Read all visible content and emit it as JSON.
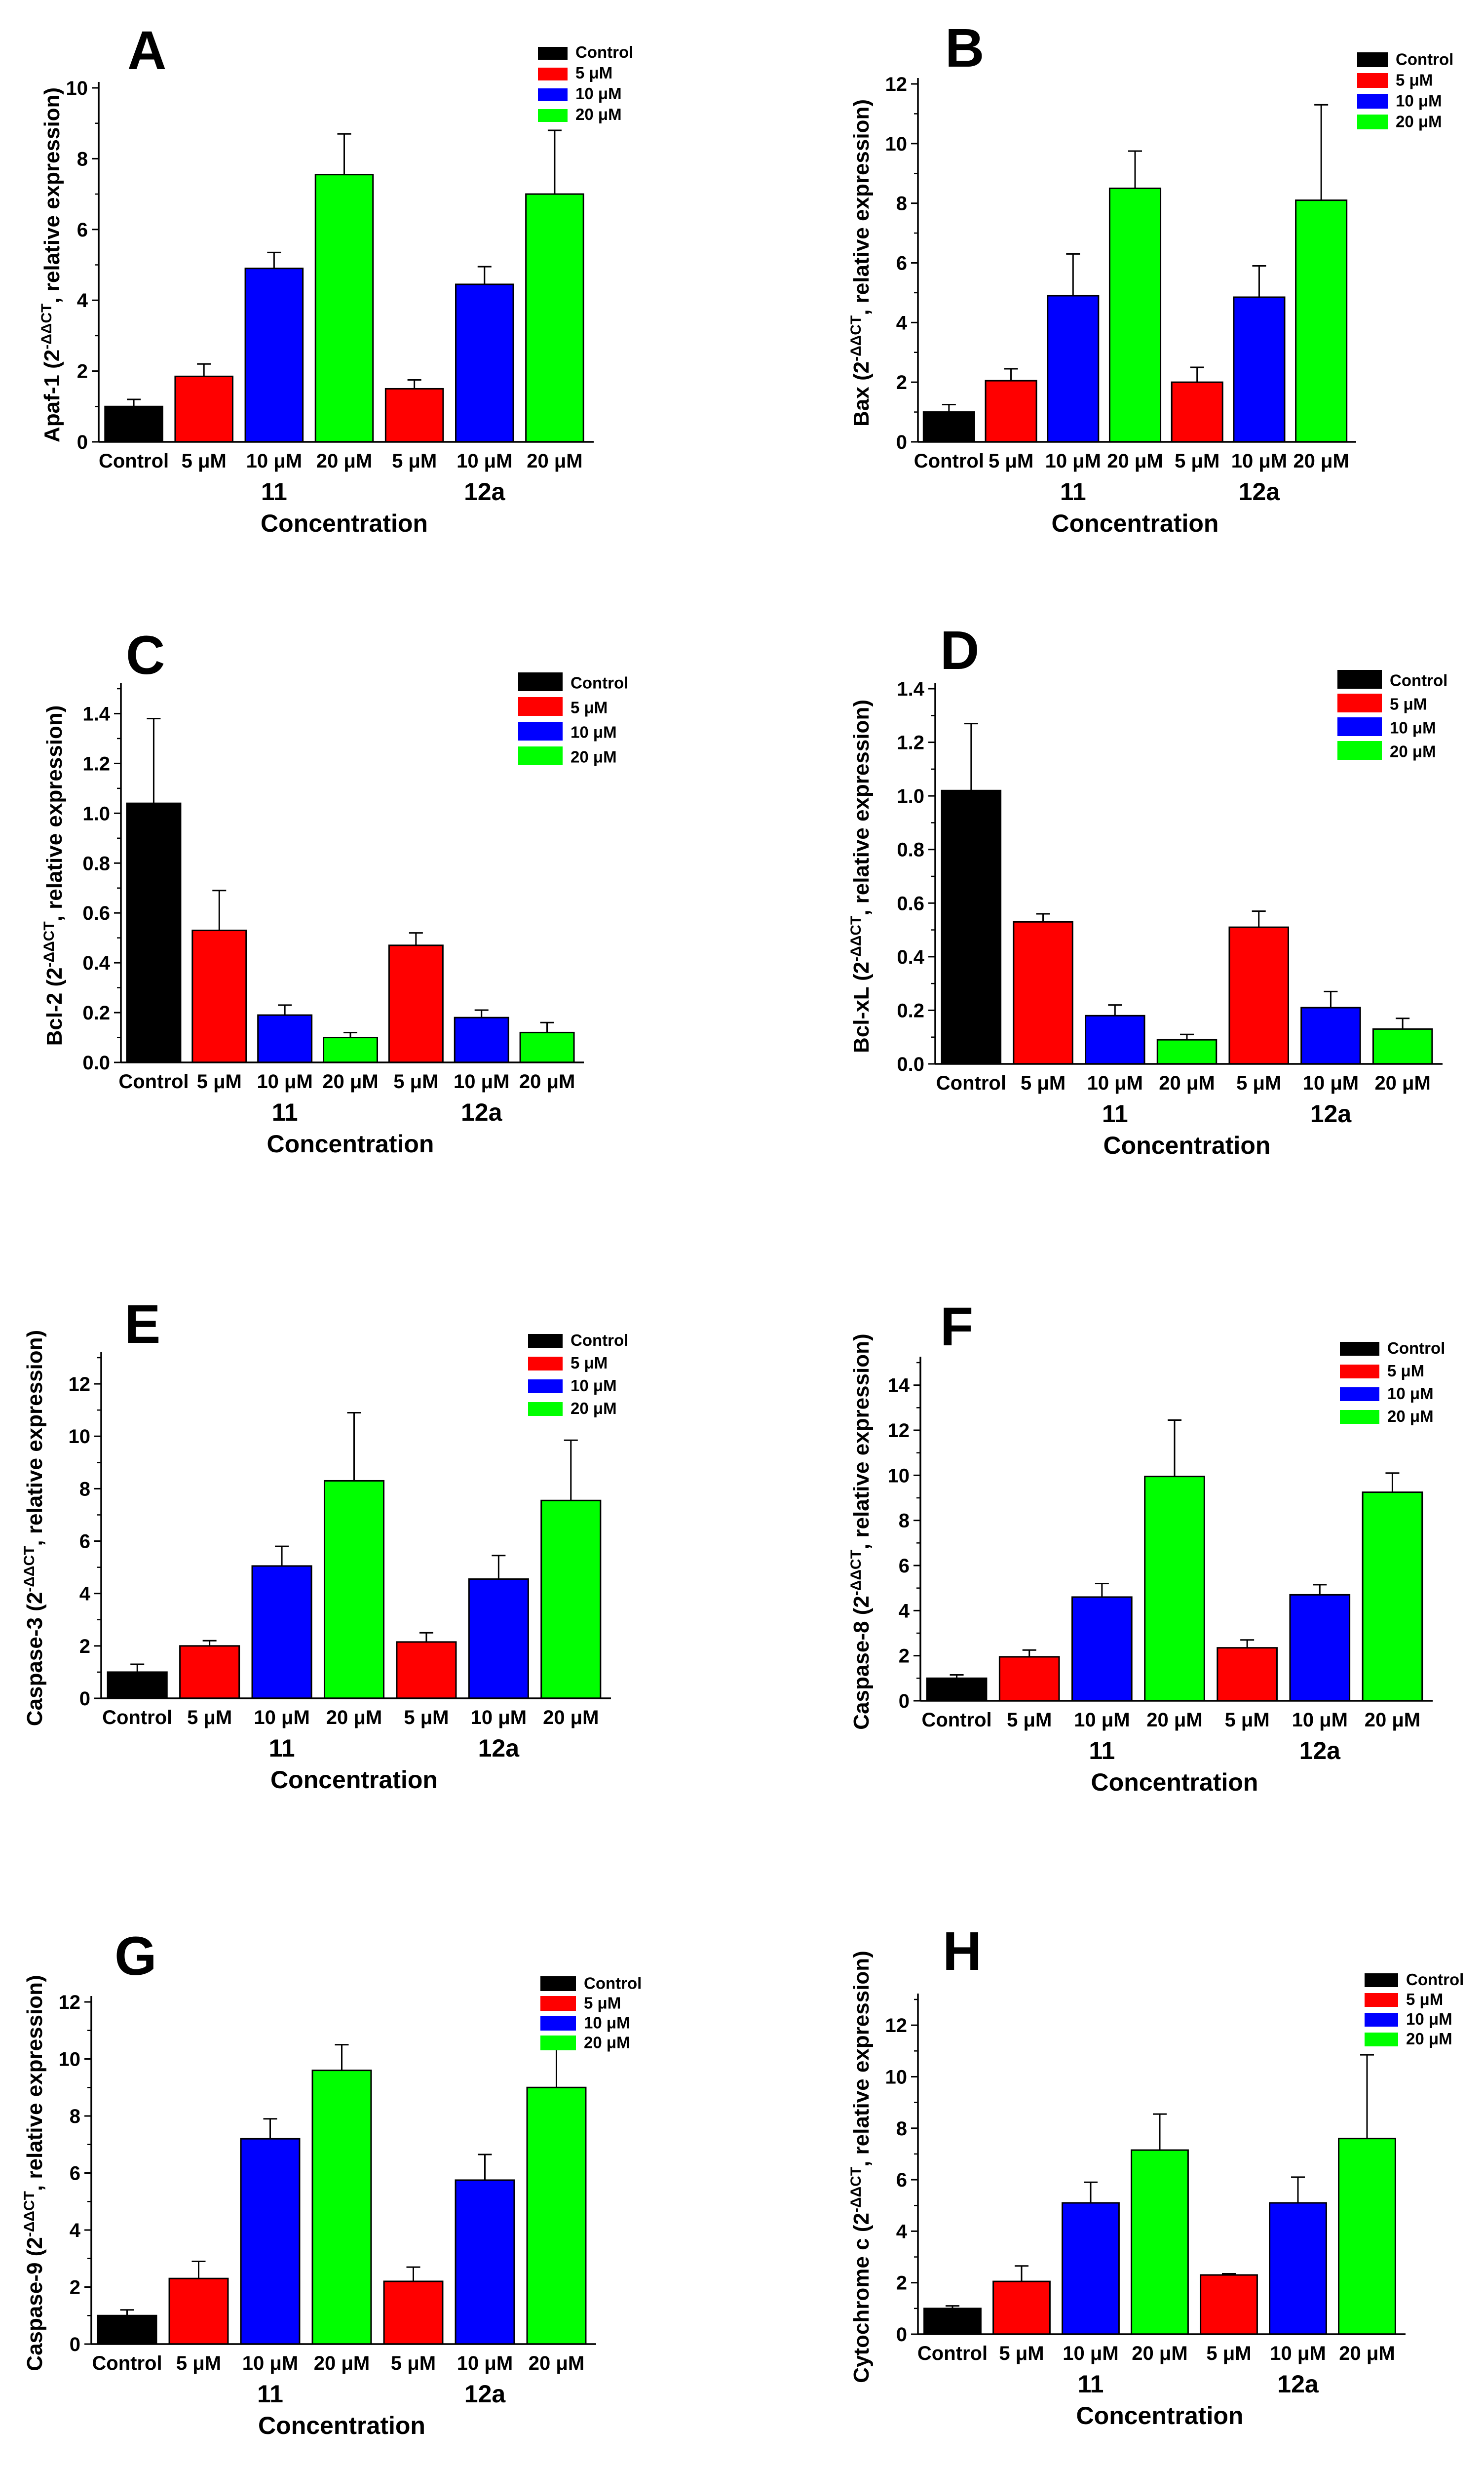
{
  "colors": {
    "control": "#000000",
    "c5": "#ff0000",
    "c10": "#0000ff",
    "c20": "#00ff00"
  },
  "chart_data": [
    {
      "type": "bar",
      "letter": "A",
      "ylabel_prefix": "Apaf-1",
      "ylabel_mid": "2",
      "ylabel_sup": "-ΔΔCT",
      "ylabel_suffix": ", relative expression)",
      "ylim": [
        0,
        10
      ],
      "yticks": [
        "0",
        "2",
        "4",
        "6",
        "8",
        "10"
      ],
      "categories": [
        "Control",
        "5 μM",
        "10 μM",
        "20 μM",
        "5 μM",
        "10 μM",
        "20 μM"
      ],
      "values": [
        1.0,
        1.85,
        4.9,
        7.55,
        1.5,
        4.45,
        7.0
      ],
      "errors": [
        0.2,
        0.35,
        0.45,
        1.15,
        0.25,
        0.5,
        1.8
      ],
      "groups": [
        "11",
        "12a"
      ],
      "xlabel": "Concentration",
      "legend": [
        "Control",
        "5 μM",
        "10 μM",
        "20 μM"
      ]
    },
    {
      "type": "bar",
      "letter": "B",
      "ylabel_prefix": "Bax",
      "ylabel_mid": "2",
      "ylabel_sup": "-ΔΔCT",
      "ylabel_suffix": ", relative expression)",
      "ylim": [
        0,
        12
      ],
      "yticks": [
        "0",
        "2",
        "4",
        "6",
        "8",
        "10",
        "12"
      ],
      "categories": [
        "Control",
        "5 μM",
        "10 μM",
        "20 μM",
        "5 μM",
        "10 μM",
        "20 μM"
      ],
      "values": [
        1.0,
        2.05,
        4.9,
        8.5,
        2.0,
        4.85,
        8.1
      ],
      "errors": [
        0.25,
        0.4,
        1.4,
        1.25,
        0.5,
        1.05,
        3.2
      ],
      "groups": [
        "11",
        "12a"
      ],
      "xlabel": "Concentration",
      "legend": [
        "Control",
        "5 μM",
        "10 μM",
        "20 μM"
      ]
    },
    {
      "type": "bar",
      "letter": "C",
      "ylabel_prefix": "Bcl-2",
      "ylabel_mid": "2",
      "ylabel_sup": "-ΔΔCT",
      "ylabel_suffix": ", relative expression)",
      "ylim": [
        0,
        1.5
      ],
      "yticks": [
        "0.0",
        "0.2",
        "0.4",
        "0.6",
        "0.8",
        "1.0",
        "1.2",
        "1.4"
      ],
      "categories": [
        "Control",
        "5 μM",
        "10 μM",
        "20 μM",
        "5 μM",
        "10 μM",
        "20 μM"
      ],
      "values": [
        1.04,
        0.53,
        0.19,
        0.1,
        0.47,
        0.18,
        0.12
      ],
      "errors": [
        0.34,
        0.16,
        0.04,
        0.02,
        0.05,
        0.03,
        0.04
      ],
      "groups": [
        "11",
        "12a"
      ],
      "xlabel": "Concentration",
      "legend": [
        "Control",
        "5 μM",
        "10 μM",
        "20 μM"
      ]
    },
    {
      "type": "bar",
      "letter": "D",
      "ylabel_prefix": "Bcl-xL",
      "ylabel_mid": "2",
      "ylabel_sup": "-ΔΔCT",
      "ylabel_suffix": ", relative expression)",
      "ylim": [
        0,
        1.4
      ],
      "yticks": [
        "0.0",
        "0.2",
        "0.4",
        "0.6",
        "0.8",
        "1.0",
        "1.2",
        "1.4"
      ],
      "categories": [
        "Control",
        "5 μM",
        "10 μM",
        "20 μM",
        "5 μM",
        "10 μM",
        "20 μM"
      ],
      "values": [
        1.02,
        0.53,
        0.18,
        0.09,
        0.51,
        0.21,
        0.13
      ],
      "errors": [
        0.25,
        0.03,
        0.04,
        0.02,
        0.06,
        0.06,
        0.04
      ],
      "groups": [
        "11",
        "12a"
      ],
      "xlabel": "Concentration",
      "legend": [
        "Control",
        "5 μM",
        "10 μM",
        "20 μM"
      ]
    },
    {
      "type": "bar",
      "letter": "E",
      "ylabel_prefix": "Caspase-3",
      "ylabel_mid": "2",
      "ylabel_sup": "-ΔΔCT",
      "ylabel_suffix": ", relative expression)",
      "ylim": [
        0,
        13
      ],
      "yticks": [
        "0",
        "2",
        "4",
        "6",
        "8",
        "10",
        "12"
      ],
      "categories": [
        "Control",
        "5 μM",
        "10 μM",
        "20 μM",
        "5 μM",
        "10 μM",
        "20 μM"
      ],
      "values": [
        1.0,
        2.0,
        5.05,
        8.3,
        2.15,
        4.55,
        7.55
      ],
      "errors": [
        0.3,
        0.2,
        0.75,
        2.6,
        0.35,
        0.9,
        2.3
      ],
      "groups": [
        "11",
        "12a"
      ],
      "xlabel": "Concentration",
      "legend": [
        "Control",
        "5 μM",
        "10 μM",
        "20 μM"
      ]
    },
    {
      "type": "bar",
      "letter": "F",
      "ylabel_prefix": "Caspase-8",
      "ylabel_mid": "2",
      "ylabel_sup": "-ΔΔCT",
      "ylabel_suffix": ", relative expression)",
      "ylim": [
        0,
        15
      ],
      "yticks": [
        "0",
        "2",
        "4",
        "6",
        "8",
        "10",
        "12",
        "14"
      ],
      "categories": [
        "Control",
        "5 μM",
        "10 μM",
        "20 μM",
        "5 μM",
        "10 μM",
        "20 μM"
      ],
      "values": [
        1.0,
        1.95,
        4.6,
        9.95,
        2.35,
        4.7,
        9.25
      ],
      "errors": [
        0.15,
        0.3,
        0.6,
        2.5,
        0.35,
        0.45,
        0.85
      ],
      "groups": [
        "11",
        "12a"
      ],
      "xlabel": "Concentration",
      "legend": [
        "Control",
        "5 μM",
        "10 μM",
        "20 μM"
      ]
    },
    {
      "type": "bar",
      "letter": "G",
      "ylabel_prefix": "Caspase-9",
      "ylabel_mid": "2",
      "ylabel_sup": "-ΔΔCT",
      "ylabel_suffix": ", relative expression)",
      "ylim": [
        0,
        12
      ],
      "yticks": [
        "0",
        "2",
        "4",
        "6",
        "8",
        "10",
        "12"
      ],
      "categories": [
        "Control",
        "5 μM",
        "10 μM",
        "20 μM",
        "5 μM",
        "10 μM",
        "20 μM"
      ],
      "values": [
        1.0,
        2.3,
        7.2,
        9.6,
        2.2,
        5.75,
        9.0
      ],
      "errors": [
        0.2,
        0.6,
        0.7,
        0.9,
        0.5,
        0.9,
        1.35
      ],
      "groups": [
        "11",
        "12a"
      ],
      "xlabel": "Concentration",
      "legend": [
        "Control",
        "5 μM",
        "10 μM",
        "20 μM"
      ]
    },
    {
      "type": "bar",
      "letter": "H",
      "ylabel_prefix": "Cytochrome c",
      "ylabel_mid": "2",
      "ylabel_sup": "-ΔΔCT",
      "ylabel_suffix": ", relative expression)",
      "ylim": [
        0,
        13
      ],
      "yticks": [
        "0",
        "2",
        "4",
        "6",
        "8",
        "10",
        "12"
      ],
      "categories": [
        "Control",
        "5 μM",
        "10 μM",
        "20 μM",
        "5 μM",
        "10 μM",
        "20 μM"
      ],
      "values": [
        1.0,
        2.05,
        5.1,
        7.15,
        2.3,
        5.1,
        7.6
      ],
      "errors": [
        0.1,
        0.6,
        0.8,
        1.4,
        0.05,
        1.0,
        3.25
      ],
      "groups": [
        "11",
        "12a"
      ],
      "xlabel": "Concentration",
      "legend": [
        "Control",
        "5 μM",
        "10 μM",
        "20 μM"
      ]
    }
  ]
}
